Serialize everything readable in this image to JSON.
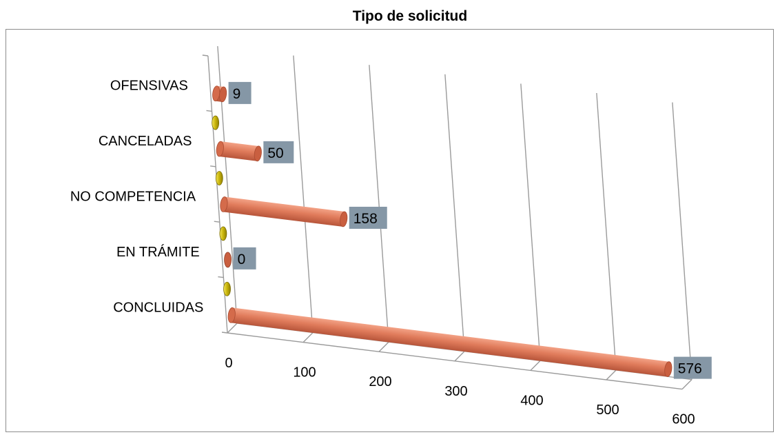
{
  "chart_data": {
    "type": "bar",
    "orientation": "horizontal",
    "style": "3d-cylinder",
    "title": "Tipo de solicitud",
    "categories": [
      "OFENSIVAS",
      "CANCELADAS",
      "NO COMPETENCIA",
      "EN TRÁMITE",
      "CONCLUIDAS"
    ],
    "series": [
      {
        "color": "#e07b5b",
        "values": [
          9,
          50,
          158,
          0,
          576
        ]
      },
      {
        "color": "#c8b40a",
        "values": [
          0,
          0,
          0,
          0,
          0
        ]
      }
    ],
    "data_labels": [
      "9",
      "50",
      "158",
      "0",
      "576"
    ],
    "x_ticks": [
      "0",
      "100",
      "200",
      "300",
      "400",
      "500",
      "600"
    ],
    "xlim": [
      0,
      600
    ],
    "grid": true,
    "label_box_color": "#8597a6"
  }
}
